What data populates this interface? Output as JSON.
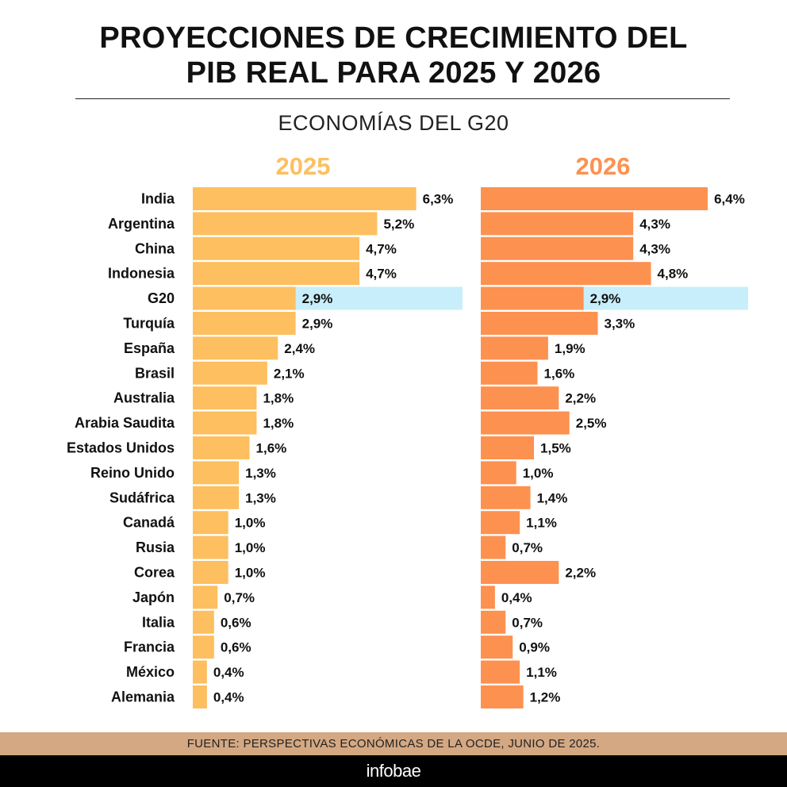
{
  "title_lines": [
    "PROYECCIONES DE CRECIMIENTO DEL",
    "PIB REAL PARA 2025 Y 2026"
  ],
  "subtitle": "ECONOMÍAS DEL G20",
  "source": "FUENTE: PERSPECTIVAS ECONÓMICAS DE LA OCDE, JUNIO DE 2025.",
  "brand": "infobae",
  "colors": {
    "bar_2025": "#fdbf5f",
    "bar_2026": "#fd9150",
    "highlight": "#c8eefb",
    "header_2025": "#fdbf5f",
    "header_2026": "#fd9150",
    "source_bar": "#d4a882",
    "footer": "#000000"
  },
  "chart_data": {
    "type": "bar",
    "orientation": "horizontal",
    "title": "PROYECCIONES DE CRECIMIENTO DEL PIB REAL PARA 2025 Y 2026",
    "subtitle": "ECONOMÍAS DEL G20",
    "categories": [
      "India",
      "Argentina",
      "China",
      "Indonesia",
      "G20",
      "Turquía",
      "España",
      "Brasil",
      "Australia",
      "Arabia Saudita",
      "Estados Unidos",
      "Reino Unido",
      "Sudáfrica",
      "Canadá",
      "Rusia",
      "Corea",
      "Japón",
      "Italia",
      "Francia",
      "México",
      "Alemania"
    ],
    "highlight_category": "G20",
    "unit": "%",
    "series": [
      {
        "name": "2025",
        "values": [
          6.3,
          5.2,
          4.7,
          4.7,
          2.9,
          2.9,
          2.4,
          2.1,
          1.8,
          1.8,
          1.6,
          1.3,
          1.3,
          1.0,
          1.0,
          1.0,
          0.7,
          0.6,
          0.6,
          0.4,
          0.4
        ],
        "labels": [
          "6,3%",
          "5,2%",
          "4,7%",
          "4,7%",
          "2,9%",
          "2,9%",
          "2,4%",
          "2,1%",
          "1,8%",
          "1,8%",
          "1,6%",
          "1,3%",
          "1,3%",
          "1,0%",
          "1,0%",
          "1,0%",
          "0,7%",
          "0,6%",
          "0,6%",
          "0,4%",
          "0,4%"
        ]
      },
      {
        "name": "2026",
        "values": [
          6.4,
          4.3,
          4.3,
          4.8,
          2.9,
          3.3,
          1.9,
          1.6,
          2.2,
          2.5,
          1.5,
          1.0,
          1.4,
          1.1,
          0.7,
          2.2,
          0.4,
          0.7,
          0.9,
          1.1,
          1.2
        ],
        "labels": [
          "6,4%",
          "4,3%",
          "4,3%",
          "4,8%",
          "2,9%",
          "3,3%",
          "1,9%",
          "1,6%",
          "2,2%",
          "2,5%",
          "1,5%",
          "1,0%",
          "1,4%",
          "1,1%",
          "0,7%",
          "2,2%",
          "0,4%",
          "0,7%",
          "0,9%",
          "1,1%",
          "1,2%"
        ]
      }
    ],
    "legend": "none"
  }
}
